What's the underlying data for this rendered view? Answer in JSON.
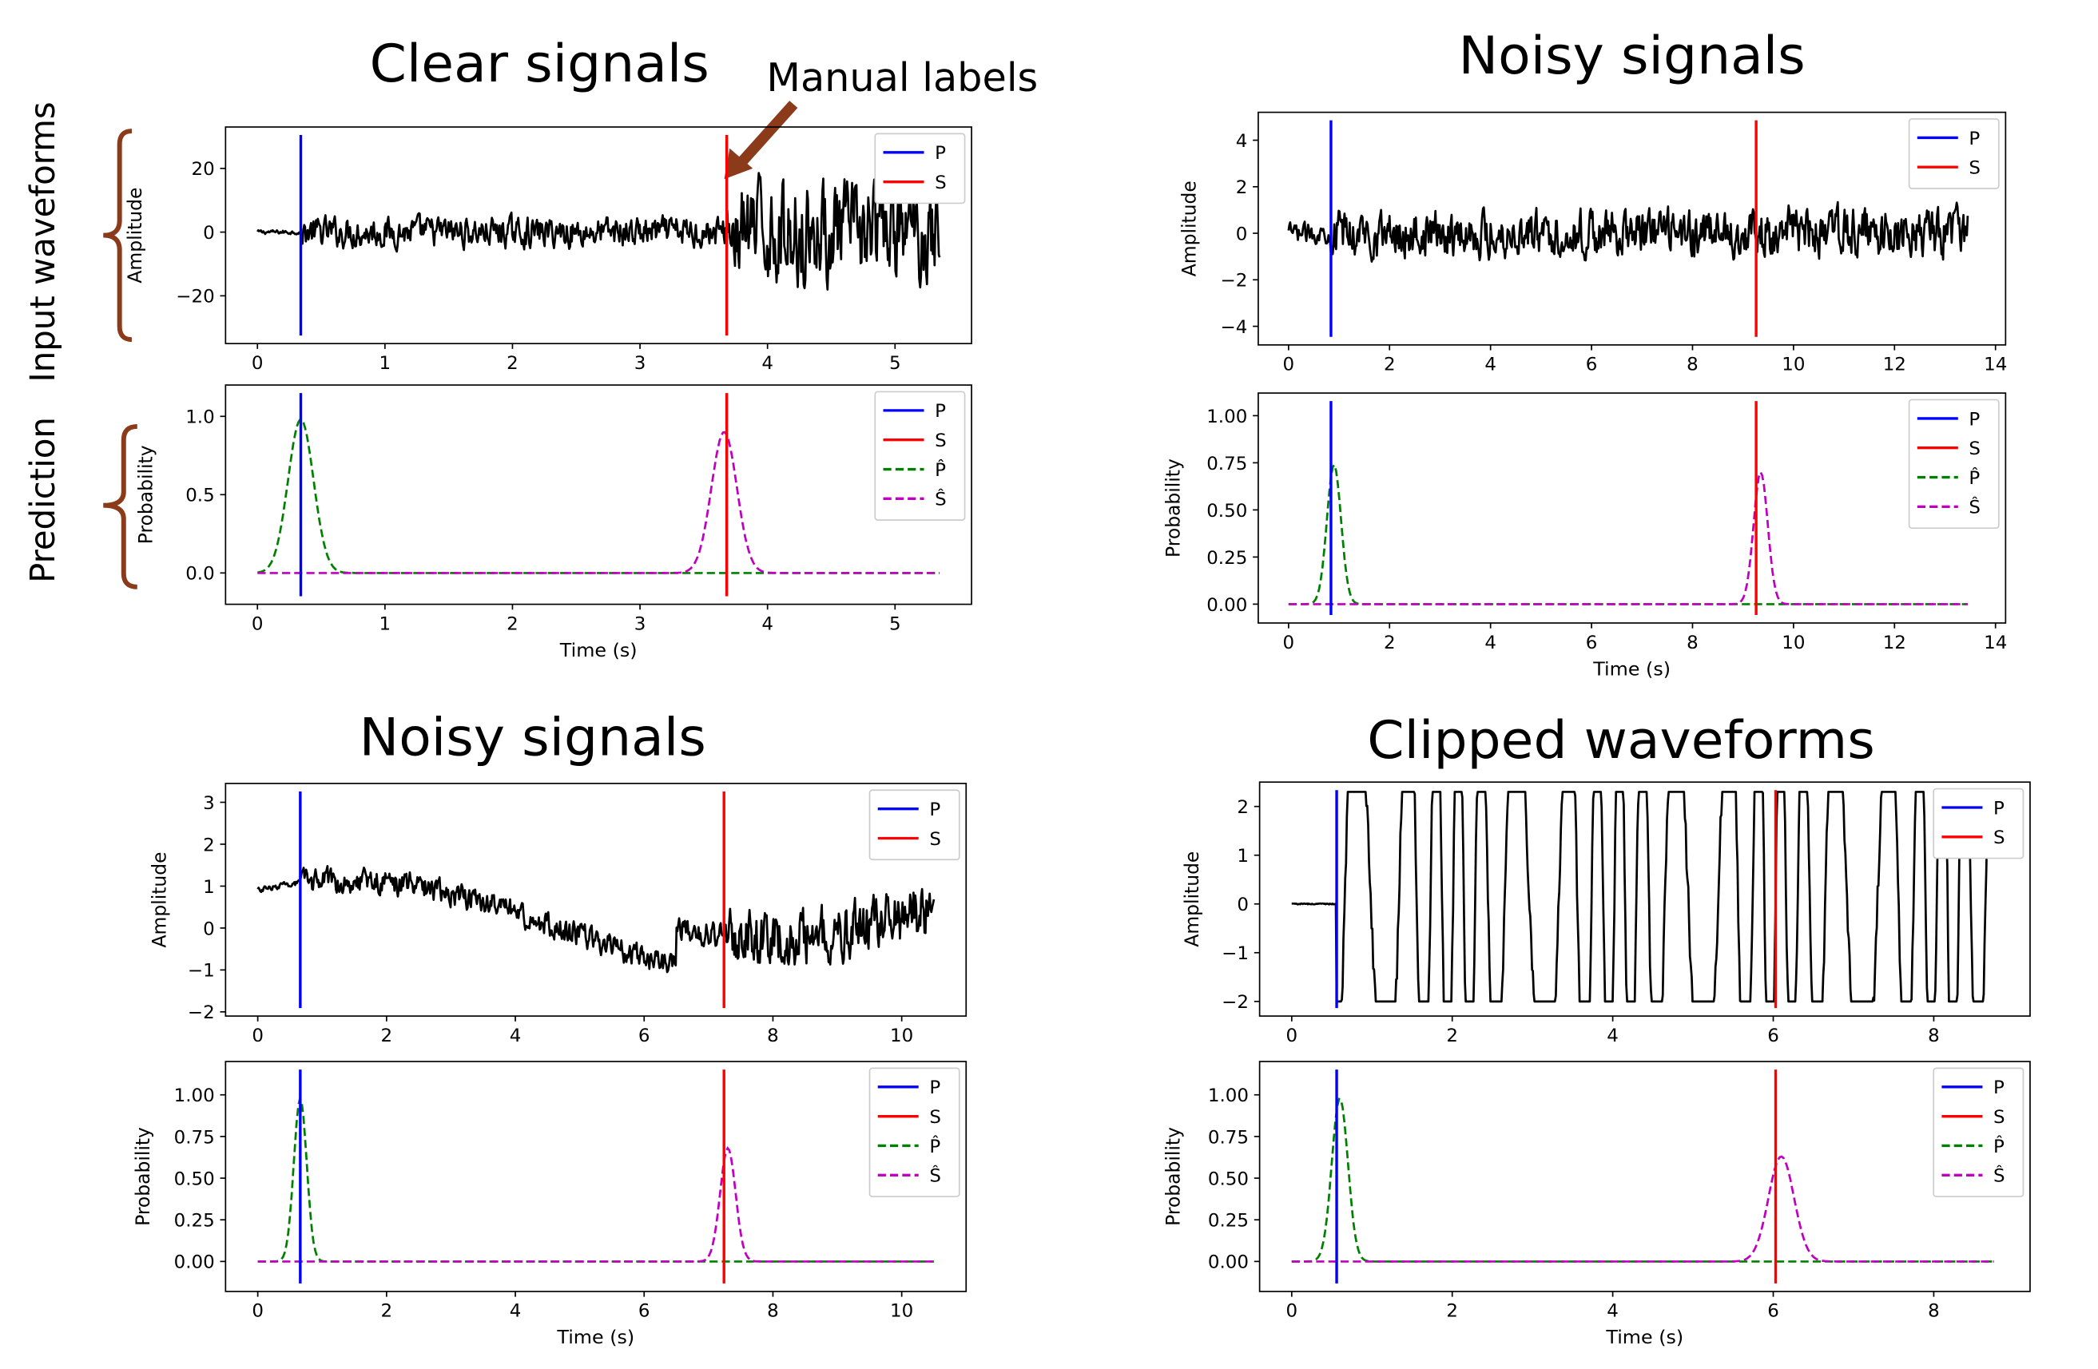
{
  "colors": {
    "P": "#0000ff",
    "S": "#ff0000",
    "P_hat": "#008000",
    "S_hat": "#bf00bf",
    "waveform": "#000000",
    "bracket": "#8b3a1a",
    "arrow": "#8b3a1a"
  },
  "annotations": {
    "manual_labels": "Manual labels",
    "input_waveforms": "Input waveforms",
    "prediction": "Prediction"
  },
  "panels": [
    {
      "title": "Clear signals"
    },
    {
      "title": "Noisy signals"
    },
    {
      "title": "Noisy signals"
    },
    {
      "title": "Clipped waveforms"
    }
  ],
  "legend": {
    "P": "P",
    "S": "S",
    "P_hat": "P̂",
    "S_hat": "Ŝ"
  },
  "chart_data": [
    {
      "type": "line",
      "panel": "Clear signals",
      "subplot": "input",
      "ylabel": "Amplitude",
      "xlim": [
        -0.25,
        5.6
      ],
      "ylim": [
        -35,
        33
      ],
      "xticks": [
        0,
        1,
        2,
        3,
        4,
        5
      ],
      "yticks": [
        -20,
        0,
        20
      ],
      "picks": {
        "P": 0.34,
        "S": 3.68
      },
      "waveform": {
        "duration": 5.35,
        "pre_amplitude": 1.0,
        "mid_amplitude": 7,
        "post_amplitude": 23,
        "clip": null,
        "drift": 0
      },
      "legend_position": "upper right"
    },
    {
      "type": "line",
      "panel": "Clear signals",
      "subplot": "prediction",
      "ylabel": "Probability",
      "xlabel": "Time (s)",
      "xlim": [
        -0.25,
        5.6
      ],
      "ylim": [
        -0.2,
        1.2
      ],
      "xticks": [
        0,
        1,
        2,
        3,
        4,
        5
      ],
      "yticks": [
        0.0,
        0.5,
        1.0
      ],
      "picks": {
        "P": 0.34,
        "S": 3.68
      },
      "x_end": 5.35,
      "prob_peaks": {
        "P_hat": {
          "t": 0.34,
          "height": 0.98,
          "width": 0.1
        },
        "S_hat": {
          "t": 3.66,
          "height": 0.9,
          "width": 0.1
        }
      },
      "legend_position": "upper right"
    },
    {
      "type": "line",
      "panel": "Noisy signals",
      "subplot": "input",
      "ylabel": "Amplitude",
      "xlim": [
        -0.6,
        14.2
      ],
      "ylim": [
        -4.8,
        5.2
      ],
      "xticks": [
        0,
        2,
        4,
        6,
        8,
        10,
        12,
        14
      ],
      "yticks": [
        -4,
        -2,
        0,
        2,
        4
      ],
      "picks": {
        "P": 0.84,
        "S": 9.26
      },
      "waveform": {
        "duration": 13.45,
        "pre_amplitude": 0.6,
        "mid_amplitude": 1.5,
        "post_amplitude": 1.6,
        "clip": null,
        "drift": 0
      },
      "legend_position": "upper right"
    },
    {
      "type": "line",
      "panel": "Noisy signals",
      "subplot": "prediction",
      "ylabel": "Probability",
      "xlabel": "Time (s)",
      "xlim": [
        -0.6,
        14.2
      ],
      "ylim": [
        -0.1,
        1.12
      ],
      "xticks": [
        0,
        2,
        4,
        6,
        8,
        10,
        12,
        14
      ],
      "yticks": [
        0.0,
        0.25,
        0.5,
        0.75,
        1.0
      ],
      "picks": {
        "P": 0.84,
        "S": 9.26
      },
      "x_end": 13.45,
      "prob_peaks": {
        "P_hat": {
          "t": 0.9,
          "height": 0.74,
          "width": 0.14
        },
        "S_hat": {
          "t": 9.35,
          "height": 0.7,
          "width": 0.14
        }
      },
      "legend_position": "upper right"
    },
    {
      "type": "line",
      "panel": "Noisy signals",
      "subplot": "input",
      "ylabel": "Amplitude",
      "xlim": [
        -0.5,
        11.0
      ],
      "ylim": [
        -2.1,
        3.45
      ],
      "xticks": [
        0,
        2,
        4,
        6,
        8,
        10
      ],
      "yticks": [
        -2,
        -1,
        0,
        1,
        2,
        3
      ],
      "picks": {
        "P": 0.66,
        "S": 7.24
      },
      "waveform": {
        "duration": 10.5,
        "pre_amplitude": 0.1,
        "mid_amplitude": 0.45,
        "post_amplitude": 1.0,
        "clip": null,
        "drift": 1
      },
      "legend_position": "upper right"
    },
    {
      "type": "line",
      "panel": "Noisy signals",
      "subplot": "prediction",
      "ylabel": "Probability",
      "xlabel": "Time (s)",
      "xlim": [
        -0.5,
        11.0
      ],
      "ylim": [
        -0.18,
        1.2
      ],
      "xticks": [
        0,
        2,
        4,
        6,
        8,
        10
      ],
      "yticks": [
        0.0,
        0.25,
        0.5,
        0.75,
        1.0
      ],
      "picks": {
        "P": 0.66,
        "S": 7.24
      },
      "x_end": 10.5,
      "prob_peaks": {
        "P_hat": {
          "t": 0.66,
          "height": 0.98,
          "width": 0.1
        },
        "S_hat": {
          "t": 7.3,
          "height": 0.68,
          "width": 0.12
        }
      },
      "legend_position": "upper right"
    },
    {
      "type": "line",
      "panel": "Clipped waveforms",
      "subplot": "input",
      "ylabel": "Amplitude",
      "xlim": [
        -0.4,
        9.2
      ],
      "ylim": [
        -2.3,
        2.5
      ],
      "xticks": [
        0,
        2,
        4,
        6,
        8
      ],
      "yticks": [
        -2,
        -1,
        0,
        1,
        2
      ],
      "picks": {
        "P": 0.56,
        "S": 6.03
      },
      "waveform": {
        "duration": 8.75,
        "pre_amplitude": 0.02,
        "mid_amplitude": 5,
        "post_amplitude": 5,
        "clip": [
          -2.0,
          2.3
        ],
        "drift": 0
      },
      "legend_position": "upper right"
    },
    {
      "type": "line",
      "panel": "Clipped waveforms",
      "subplot": "prediction",
      "ylabel": "Probability",
      "xlabel": "Time (s)",
      "xlim": [
        -0.4,
        9.2
      ],
      "ylim": [
        -0.18,
        1.2
      ],
      "xticks": [
        0,
        2,
        4,
        6,
        8
      ],
      "yticks": [
        0.0,
        0.25,
        0.5,
        0.75,
        1.0
      ],
      "picks": {
        "P": 0.56,
        "S": 6.03
      },
      "x_end": 8.75,
      "prob_peaks": {
        "P_hat": {
          "t": 0.6,
          "height": 0.98,
          "width": 0.1
        },
        "S_hat": {
          "t": 6.1,
          "height": 0.63,
          "width": 0.16
        }
      },
      "legend_position": "upper right"
    }
  ]
}
